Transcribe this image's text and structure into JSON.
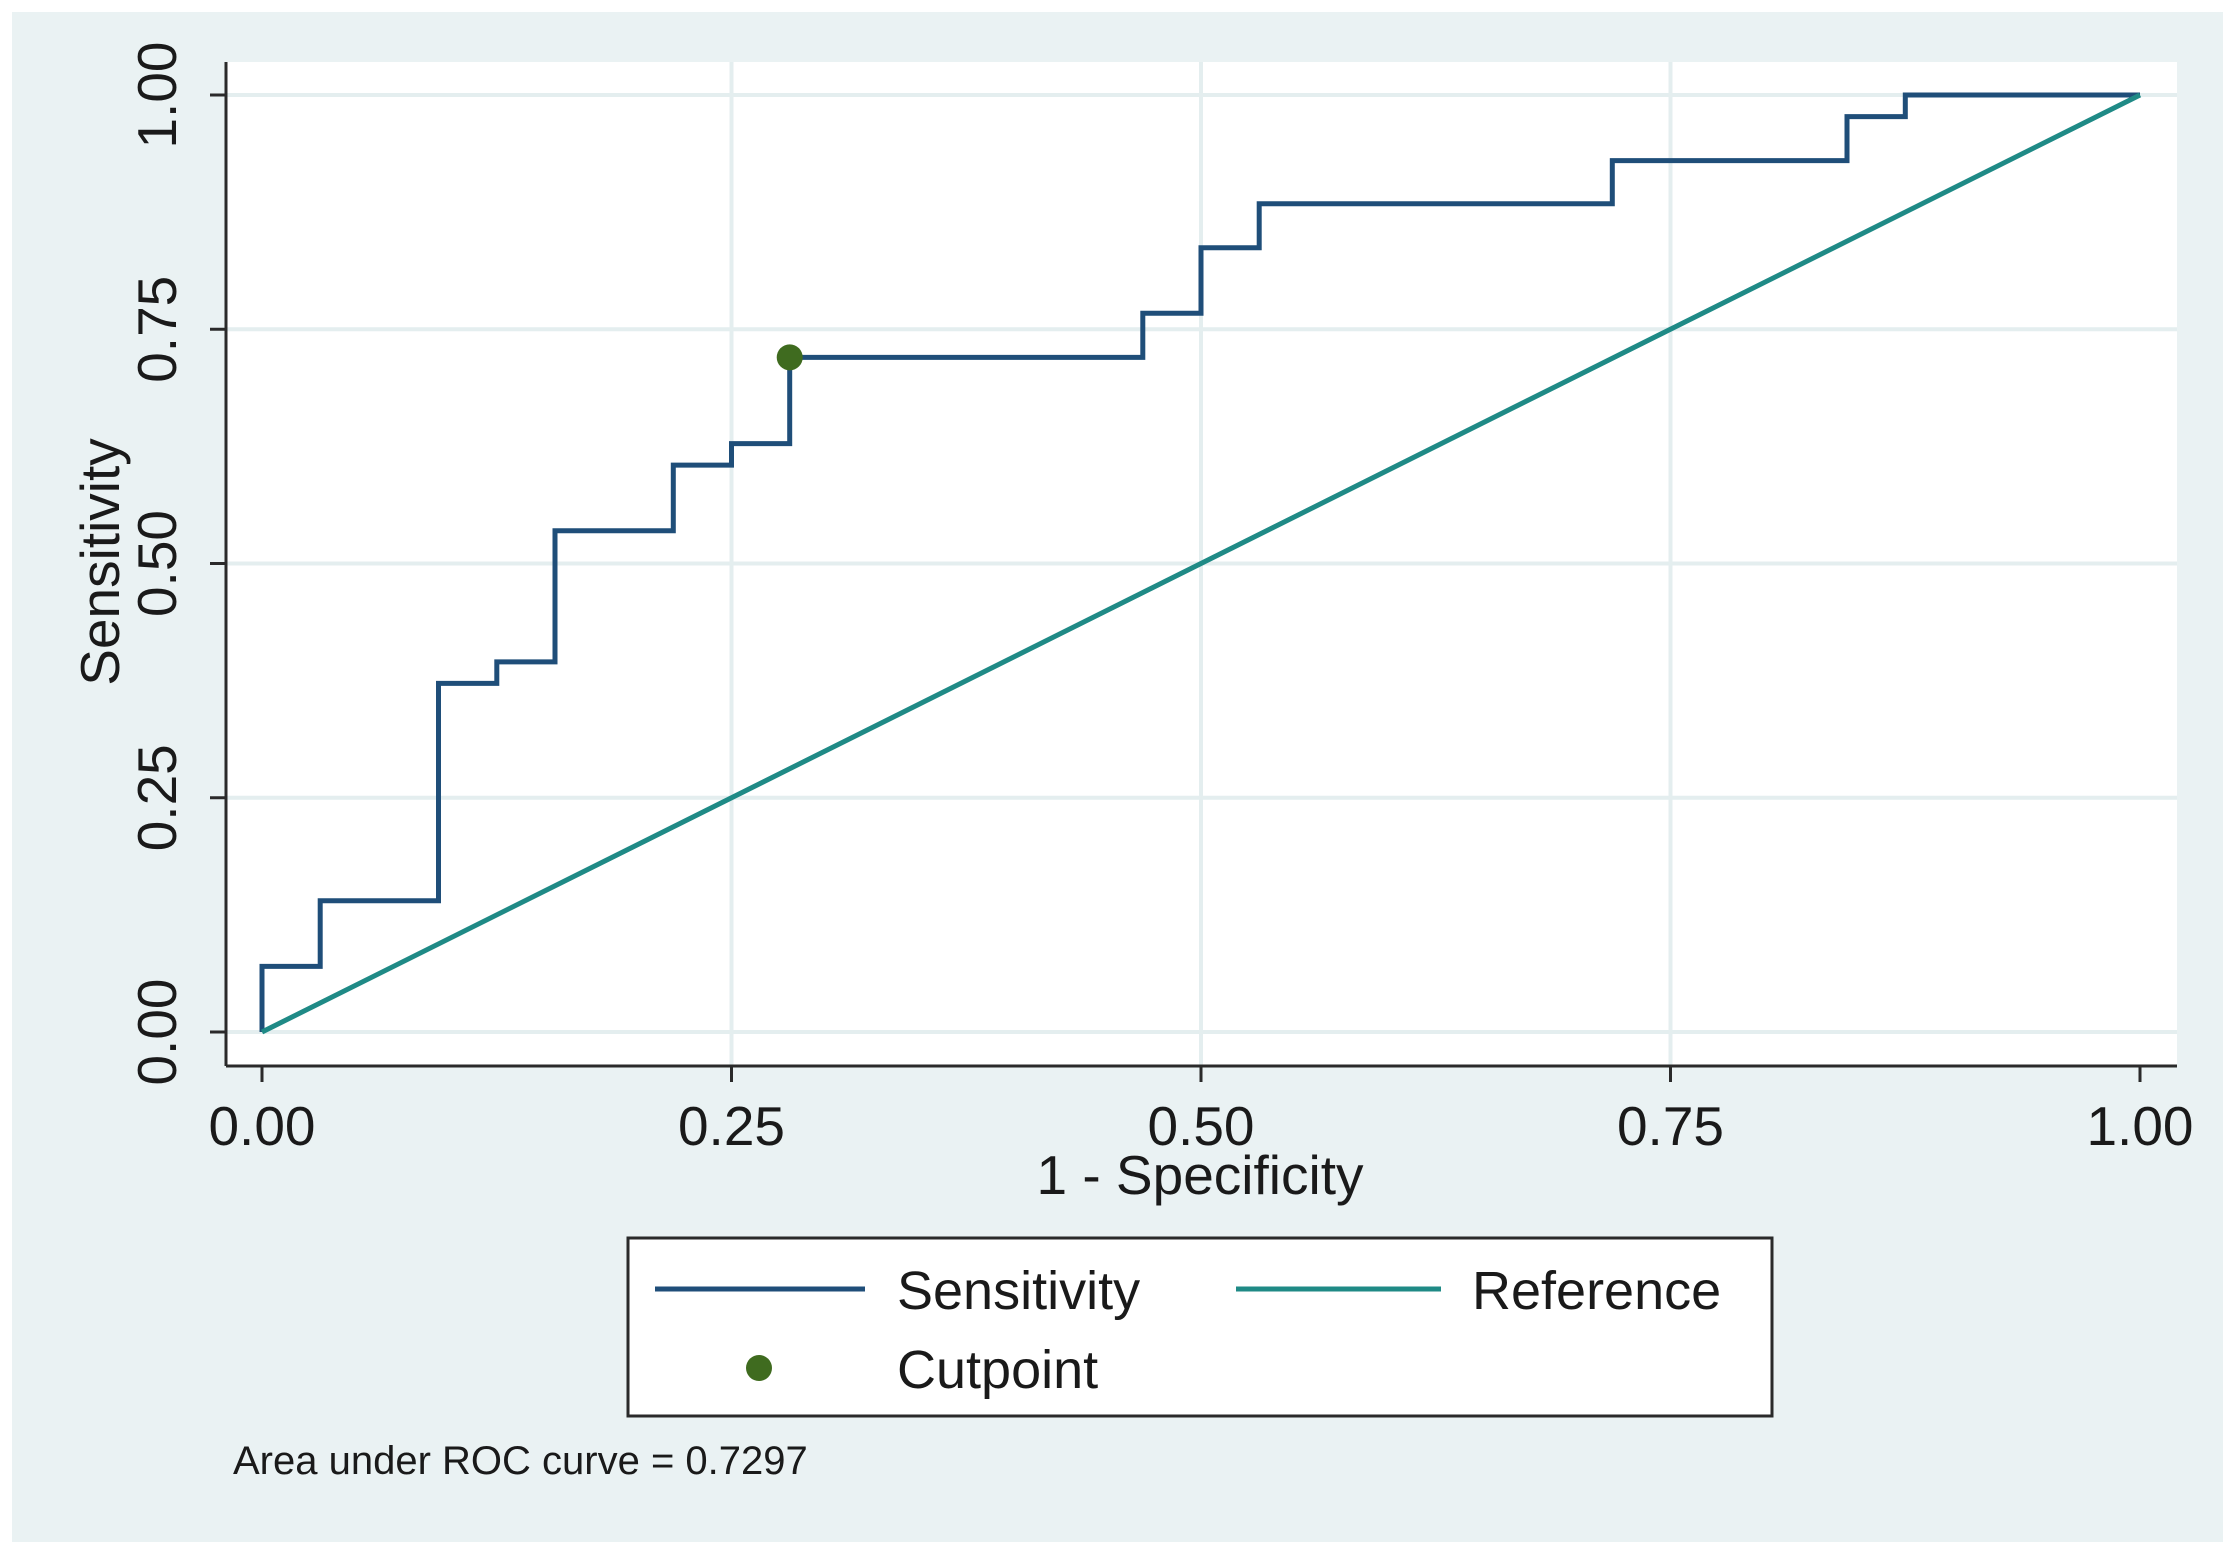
{
  "chart_data": {
    "type": "line",
    "xlabel": "1 - Specificity",
    "ylabel": "Sensitivity",
    "xlim": [
      0,
      1
    ],
    "ylim": [
      0,
      1
    ],
    "x_ticks": [
      "0.00",
      "0.25",
      "0.50",
      "0.75",
      "1.00"
    ],
    "y_ticks": [
      "0.00",
      "0.25",
      "0.50",
      "0.75",
      "1.00"
    ],
    "grid": true,
    "legend_position": "bottom",
    "note": "Area under ROC curve = 0.7297",
    "series": [
      {
        "name": "Sensitivity",
        "type": "step",
        "color": "#1f4e79",
        "points": [
          [
            0.0,
            0.0
          ],
          [
            0.0,
            0.07
          ],
          [
            0.031,
            0.07
          ],
          [
            0.031,
            0.14
          ],
          [
            0.094,
            0.14
          ],
          [
            0.094,
            0.372
          ],
          [
            0.125,
            0.372
          ],
          [
            0.125,
            0.395
          ],
          [
            0.156,
            0.395
          ],
          [
            0.156,
            0.535
          ],
          [
            0.219,
            0.535
          ],
          [
            0.219,
            0.605
          ],
          [
            0.25,
            0.605
          ],
          [
            0.25,
            0.628
          ],
          [
            0.281,
            0.628
          ],
          [
            0.281,
            0.72
          ],
          [
            0.469,
            0.72
          ],
          [
            0.469,
            0.767
          ],
          [
            0.5,
            0.767
          ],
          [
            0.5,
            0.837
          ],
          [
            0.531,
            0.837
          ],
          [
            0.531,
            0.884
          ],
          [
            0.719,
            0.884
          ],
          [
            0.719,
            0.93
          ],
          [
            0.844,
            0.93
          ],
          [
            0.844,
            0.977
          ],
          [
            0.875,
            0.977
          ],
          [
            0.875,
            1.0
          ],
          [
            1.0,
            1.0
          ]
        ]
      },
      {
        "name": "Reference",
        "type": "line",
        "color": "#1f8a86",
        "points": [
          [
            0,
            0
          ],
          [
            1,
            1
          ]
        ]
      },
      {
        "name": "Cutpoint",
        "type": "scatter",
        "color": "#3f6b1f",
        "points": [
          [
            0.281,
            0.72
          ]
        ]
      }
    ]
  },
  "colors": {
    "outer_background": "#eaf2f3",
    "plot_background": "#ffffff",
    "grid": "#e4eeef",
    "axis": "#2a2a2a"
  }
}
